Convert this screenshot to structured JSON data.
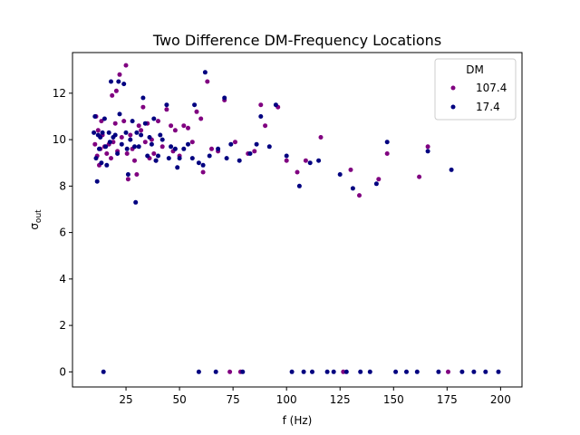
{
  "chart_data": {
    "type": "scatter",
    "title": "Two Difference DM-Frequency Locations",
    "xlabel": "f (Hz)",
    "ylabel": "σ",
    "ylabel_sub": "out",
    "xlim": [
      0,
      210
    ],
    "ylim": [
      -0.65,
      13.75
    ],
    "xticks": [
      25,
      50,
      75,
      100,
      125,
      150,
      175,
      200
    ],
    "yticks": [
      0,
      2,
      4,
      6,
      8,
      10,
      12
    ],
    "grid": false,
    "legend": {
      "title": "DM",
      "position": "top-right"
    },
    "series": [
      {
        "name": "107.4",
        "color": "#800080",
        "points": [
          [
            10.5,
            9.8
          ],
          [
            11,
            11
          ],
          [
            11.5,
            9.3
          ],
          [
            12,
            10.4
          ],
          [
            12.5,
            8.9
          ],
          [
            13,
            9.6
          ],
          [
            13.5,
            10.8
          ],
          [
            14,
            10.2
          ],
          [
            15,
            9.7
          ],
          [
            16,
            9.4
          ],
          [
            17,
            9.8
          ],
          [
            18,
            9.2
          ],
          [
            18.5,
            11.9
          ],
          [
            19,
            9.9
          ],
          [
            20,
            10.7
          ],
          [
            20.5,
            12.1
          ],
          [
            21,
            9.5
          ],
          [
            22,
            12.8
          ],
          [
            23,
            10.1
          ],
          [
            24,
            10.8
          ],
          [
            25,
            13.2
          ],
          [
            25.5,
            9.4
          ],
          [
            26,
            8.3
          ],
          [
            27,
            10.2
          ],
          [
            28,
            9.6
          ],
          [
            29,
            9.1
          ],
          [
            30,
            8.5
          ],
          [
            31,
            10.6
          ],
          [
            32,
            10.4
          ],
          [
            33,
            11.4
          ],
          [
            34,
            9.9
          ],
          [
            35,
            10.7
          ],
          [
            36,
            9.2
          ],
          [
            37,
            10.0
          ],
          [
            38,
            9.4
          ],
          [
            39,
            9.1
          ],
          [
            40,
            10.8
          ],
          [
            42,
            9.7
          ],
          [
            44,
            11.3
          ],
          [
            46,
            10.6
          ],
          [
            47,
            9.5
          ],
          [
            48,
            10.4
          ],
          [
            50,
            9.3
          ],
          [
            52,
            10.6
          ],
          [
            54,
            10.5
          ],
          [
            56,
            9.9
          ],
          [
            58,
            11.2
          ],
          [
            60,
            10.9
          ],
          [
            61,
            8.6
          ],
          [
            63,
            12.5
          ],
          [
            65,
            9.6
          ],
          [
            68,
            9.5
          ],
          [
            71,
            11.7
          ],
          [
            76,
            9.9
          ],
          [
            82,
            9.4
          ],
          [
            85,
            9.5
          ],
          [
            88,
            11.5
          ],
          [
            90,
            10.6
          ],
          [
            96,
            11.4
          ],
          [
            100,
            9.1
          ],
          [
            105,
            8.6
          ],
          [
            109,
            9.1
          ],
          [
            116,
            10.1
          ],
          [
            130,
            8.7
          ],
          [
            134,
            7.6
          ],
          [
            143,
            8.3
          ],
          [
            147,
            9.4
          ],
          [
            162,
            8.4
          ],
          [
            166,
            9.7
          ],
          [
            73.5,
            0
          ],
          [
            78.5,
            0
          ],
          [
            126.5,
            0
          ],
          [
            175.5,
            0
          ]
        ]
      },
      {
        "name": "17.4",
        "color": "#000080",
        "points": [
          [
            10,
            10.3
          ],
          [
            10.5,
            11
          ],
          [
            11,
            9.2
          ],
          [
            11.5,
            8.2
          ],
          [
            12,
            10.2
          ],
          [
            12.5,
            9.6
          ],
          [
            13,
            10.1
          ],
          [
            13.5,
            9.0
          ],
          [
            14,
            10.3
          ],
          [
            15,
            10.9
          ],
          [
            15.5,
            9.7
          ],
          [
            16,
            8.9
          ],
          [
            17,
            10.3
          ],
          [
            17.5,
            9.9
          ],
          [
            18,
            12.5
          ],
          [
            19,
            10.1
          ],
          [
            20,
            10.2
          ],
          [
            21,
            9.4
          ],
          [
            21.5,
            12.5
          ],
          [
            22,
            11.1
          ],
          [
            23,
            9.8
          ],
          [
            24,
            12.4
          ],
          [
            25,
            10.3
          ],
          [
            25.5,
            9.6
          ],
          [
            26,
            8.5
          ],
          [
            27,
            10.0
          ],
          [
            28,
            10.8
          ],
          [
            29,
            9.7
          ],
          [
            29.5,
            7.3
          ],
          [
            30,
            10.3
          ],
          [
            31,
            9.7
          ],
          [
            32,
            10.2
          ],
          [
            33,
            11.8
          ],
          [
            34,
            10.7
          ],
          [
            35,
            9.3
          ],
          [
            36,
            10.1
          ],
          [
            37,
            9.8
          ],
          [
            38,
            10.9
          ],
          [
            39,
            9.1
          ],
          [
            40,
            9.3
          ],
          [
            41,
            10.2
          ],
          [
            42,
            10.0
          ],
          [
            44,
            11.5
          ],
          [
            45,
            9.2
          ],
          [
            46,
            9.7
          ],
          [
            48,
            9.6
          ],
          [
            49,
            8.8
          ],
          [
            50,
            9.2
          ],
          [
            52,
            9.6
          ],
          [
            54,
            9.8
          ],
          [
            56,
            9.2
          ],
          [
            57,
            11.5
          ],
          [
            59,
            9.0
          ],
          [
            61,
            8.9
          ],
          [
            62,
            12.9
          ],
          [
            64,
            9.3
          ],
          [
            68,
            9.6
          ],
          [
            71,
            11.8
          ],
          [
            72,
            9.2
          ],
          [
            74,
            9.8
          ],
          [
            78,
            9.1
          ],
          [
            83,
            9.4
          ],
          [
            86,
            9.8
          ],
          [
            88,
            11.0
          ],
          [
            92,
            9.7
          ],
          [
            95,
            11.5
          ],
          [
            100,
            9.3
          ],
          [
            106,
            8.0
          ],
          [
            111,
            9.0
          ],
          [
            115,
            9.1
          ],
          [
            125,
            8.5
          ],
          [
            131,
            7.9
          ],
          [
            142,
            8.1
          ],
          [
            147,
            9.9
          ],
          [
            166,
            9.5
          ],
          [
            177,
            8.7
          ],
          [
            14.5,
            0
          ],
          [
            59,
            0
          ],
          [
            67,
            0
          ],
          [
            79.5,
            0
          ],
          [
            102.5,
            0
          ],
          [
            108,
            0
          ],
          [
            112,
            0
          ],
          [
            119,
            0
          ],
          [
            122,
            0
          ],
          [
            128,
            0
          ],
          [
            134.5,
            0
          ],
          [
            139,
            0
          ],
          [
            151,
            0
          ],
          [
            156,
            0
          ],
          [
            161,
            0
          ],
          [
            171,
            0
          ],
          [
            182,
            0
          ],
          [
            187.5,
            0
          ],
          [
            193,
            0
          ],
          [
            199,
            0
          ]
        ]
      }
    ]
  }
}
